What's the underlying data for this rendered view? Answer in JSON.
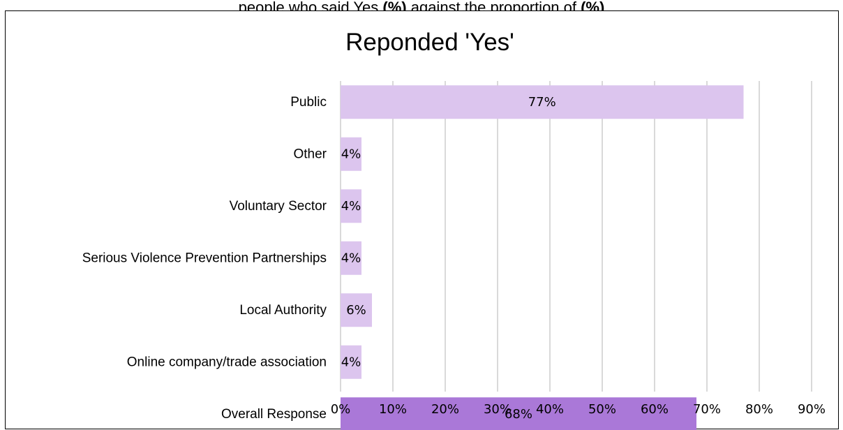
{
  "caption": {
    "segments": [
      {
        "text": "people who said Yes ",
        "bold": false
      },
      {
        "text": "(%)",
        "bold": true
      },
      {
        "text": " against the proportion of ",
        "bold": false
      },
      {
        "text": "(%)",
        "bold": true
      }
    ]
  },
  "chart_data": {
    "type": "bar",
    "orientation": "horizontal",
    "title": "Reponded 'Yes'",
    "categories": [
      "Public",
      "Other",
      "Voluntary Sector",
      "Serious Violence Prevention Partnerships",
      "Local Authority",
      "Online company/trade association",
      "Overall Response"
    ],
    "values": [
      77,
      4,
      4,
      4,
      6,
      4,
      68
    ],
    "data_labels": [
      "77%",
      "4%",
      "4%",
      "4%",
      "6%",
      "4%",
      "68%"
    ],
    "bar_colors": [
      "#dcc5ee",
      "#dcc5ee",
      "#dcc5ee",
      "#dcc5ee",
      "#dcc5ee",
      "#dcc5ee",
      "#aa78d8"
    ],
    "xlim": [
      0,
      90
    ],
    "xticks": [
      "0%",
      "10%",
      "20%",
      "30%",
      "40%",
      "50%",
      "60%",
      "70%",
      "80%",
      "90%"
    ],
    "grid": true,
    "gridline_color": "#d9d9d9",
    "legend": "none"
  }
}
